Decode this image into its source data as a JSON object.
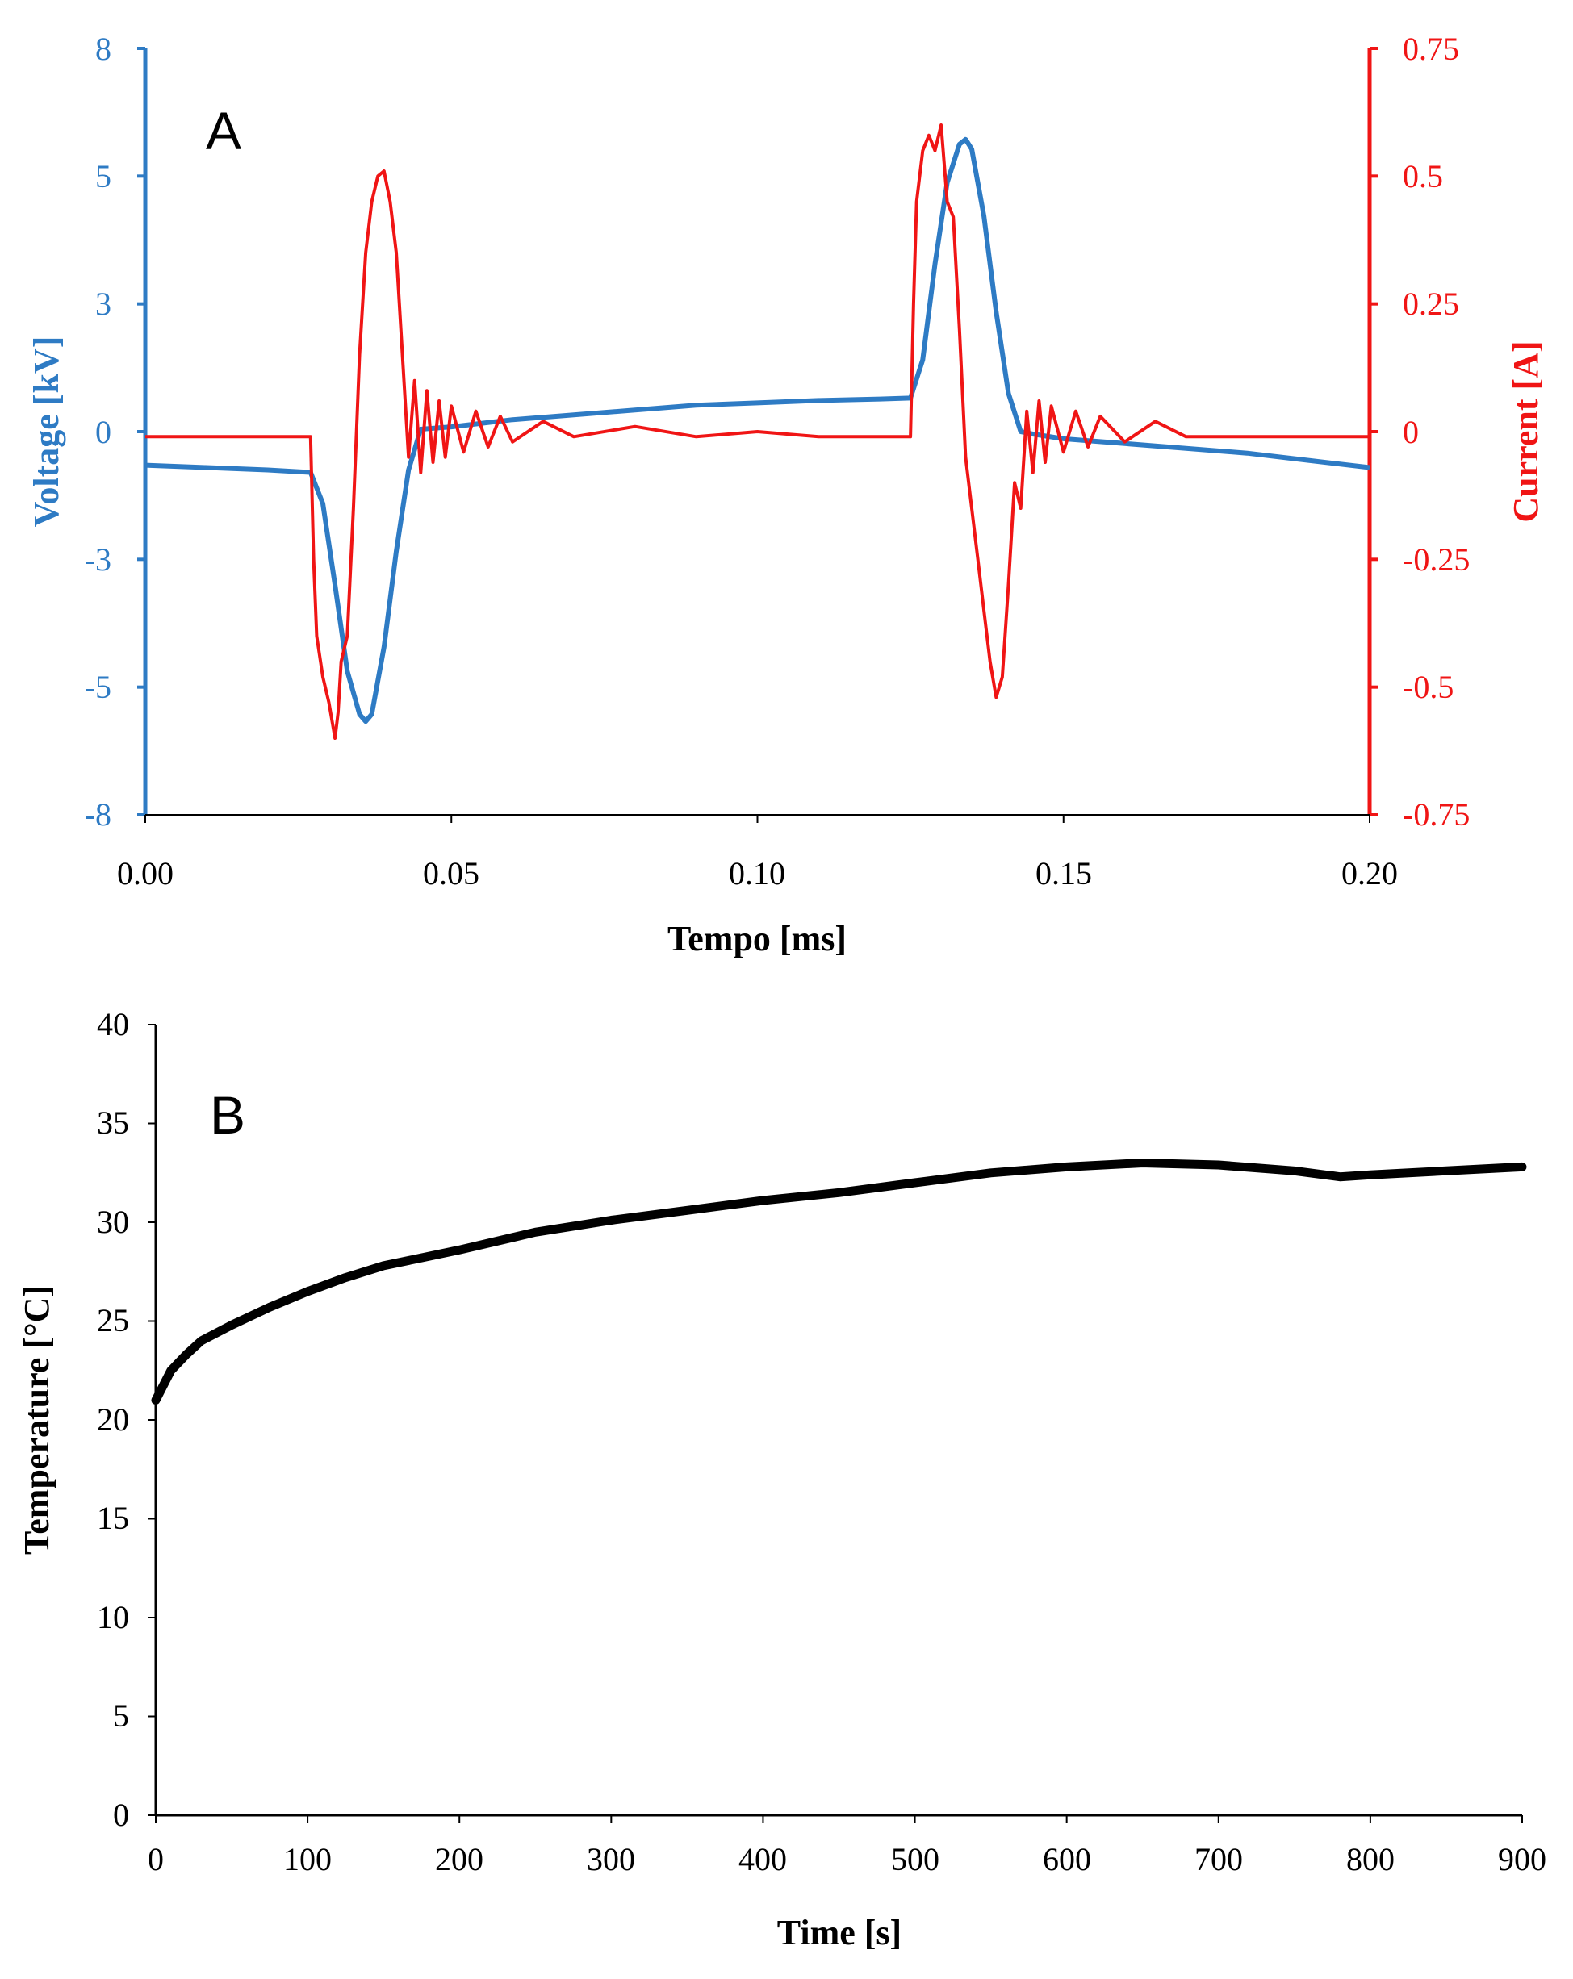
{
  "chart_data": [
    {
      "panel": "A",
      "type": "line",
      "label": "A",
      "xlabel": "Tempo [ms]",
      "xlim": [
        0,
        0.2
      ],
      "xticks": [
        "0.00",
        "0.05",
        "0.10",
        "0.15",
        "0.20"
      ],
      "ylabel_left": "Voltage [kV]",
      "ylim_left": [
        -8,
        8
      ],
      "yticks_left": [
        "8",
        "5",
        "3",
        "0",
        "-3",
        "-5",
        "-8"
      ],
      "ylabel_right": "Current [A]",
      "ylim_right": [
        -0.75,
        0.75
      ],
      "yticks_right": [
        "0.75",
        "0.5",
        "0.25",
        "0",
        "-0.25",
        "-0.5",
        "-0.75"
      ],
      "grid": false,
      "series": [
        {
          "name": "Voltage",
          "axis": "left",
          "color": "#2E7BC4",
          "x": [
            0,
            0.01,
            0.02,
            0.027,
            0.029,
            0.031,
            0.033,
            0.035,
            0.036,
            0.037,
            0.039,
            0.041,
            0.043,
            0.045,
            0.05,
            0.06,
            0.07,
            0.08,
            0.09,
            0.1,
            0.11,
            0.12,
            0.125,
            0.127,
            0.129,
            0.131,
            0.133,
            0.134,
            0.135,
            0.137,
            0.139,
            0.141,
            0.143,
            0.145,
            0.15,
            0.16,
            0.17,
            0.18,
            0.19,
            0.2
          ],
          "y": [
            -0.7,
            -0.75,
            -0.8,
            -0.85,
            -1.5,
            -3.2,
            -5.0,
            -5.9,
            -6.05,
            -5.9,
            -4.5,
            -2.5,
            -0.8,
            0.05,
            0.1,
            0.25,
            0.35,
            0.45,
            0.55,
            0.6,
            0.65,
            0.68,
            0.7,
            1.5,
            3.5,
            5.2,
            6.0,
            6.1,
            5.9,
            4.5,
            2.5,
            0.8,
            0.0,
            -0.05,
            -0.15,
            -0.25,
            -0.35,
            -0.45,
            -0.6,
            -0.75
          ]
        },
        {
          "name": "Current",
          "axis": "right",
          "color": "#F01515",
          "x": [
            0,
            0.01,
            0.02,
            0.027,
            0.0275,
            0.028,
            0.029,
            0.03,
            0.031,
            0.0315,
            0.032,
            0.033,
            0.034,
            0.035,
            0.036,
            0.037,
            0.038,
            0.039,
            0.04,
            0.041,
            0.042,
            0.043,
            0.044,
            0.045,
            0.046,
            0.047,
            0.048,
            0.049,
            0.05,
            0.052,
            0.054,
            0.056,
            0.058,
            0.06,
            0.065,
            0.07,
            0.08,
            0.09,
            0.1,
            0.11,
            0.12,
            0.125,
            0.1255,
            0.126,
            0.127,
            0.128,
            0.129,
            0.13,
            0.131,
            0.132,
            0.133,
            0.134,
            0.135,
            0.136,
            0.137,
            0.138,
            0.139,
            0.14,
            0.141,
            0.142,
            0.143,
            0.144,
            0.145,
            0.146,
            0.147,
            0.148,
            0.15,
            0.152,
            0.154,
            0.156,
            0.16,
            0.165,
            0.17,
            0.18,
            0.19,
            0.2
          ],
          "y": [
            -0.01,
            -0.01,
            -0.01,
            -0.01,
            -0.25,
            -0.4,
            -0.48,
            -0.53,
            -0.6,
            -0.55,
            -0.45,
            -0.4,
            -0.15,
            0.15,
            0.35,
            0.45,
            0.5,
            0.51,
            0.45,
            0.35,
            0.15,
            -0.05,
            0.1,
            -0.08,
            0.08,
            -0.06,
            0.06,
            -0.05,
            0.05,
            -0.04,
            0.04,
            -0.03,
            0.03,
            -0.02,
            0.02,
            -0.01,
            0.01,
            -0.01,
            0.0,
            -0.01,
            -0.01,
            -0.01,
            0.25,
            0.45,
            0.55,
            0.58,
            0.55,
            0.6,
            0.45,
            0.42,
            0.2,
            -0.05,
            -0.15,
            -0.25,
            -0.35,
            -0.45,
            -0.52,
            -0.48,
            -0.3,
            -0.1,
            -0.15,
            0.04,
            -0.08,
            0.06,
            -0.06,
            0.05,
            -0.04,
            0.04,
            -0.03,
            0.03,
            -0.02,
            0.02,
            -0.01,
            -0.01,
            -0.01,
            -0.01
          ]
        }
      ]
    },
    {
      "panel": "B",
      "type": "line",
      "label": "B",
      "xlabel": "Time [s]",
      "xlim": [
        0,
        900
      ],
      "xticks": [
        "0",
        "100",
        "200",
        "300",
        "400",
        "500",
        "600",
        "700",
        "800",
        "900"
      ],
      "ylabel": "Temperature [°C]",
      "ylim": [
        0,
        40
      ],
      "yticks": [
        "0",
        "5",
        "10",
        "15",
        "20",
        "25",
        "30",
        "35",
        "40"
      ],
      "grid": false,
      "series": [
        {
          "name": "Temperature",
          "color": "#000000",
          "x": [
            0,
            10,
            20,
            30,
            50,
            75,
            100,
            125,
            150,
            175,
            200,
            250,
            300,
            350,
            400,
            450,
            500,
            550,
            600,
            650,
            700,
            750,
            780,
            800,
            850,
            900
          ],
          "y": [
            21.0,
            22.5,
            23.3,
            24.0,
            24.8,
            25.7,
            26.5,
            27.2,
            27.8,
            28.2,
            28.6,
            29.5,
            30.1,
            30.6,
            31.1,
            31.5,
            32.0,
            32.5,
            32.8,
            33.0,
            32.9,
            32.6,
            32.3,
            32.4,
            32.6,
            32.8
          ]
        }
      ]
    }
  ]
}
